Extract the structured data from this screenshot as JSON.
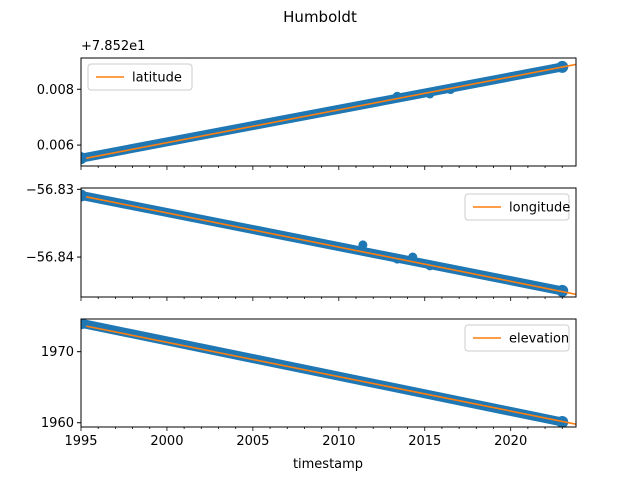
{
  "chart_data": {
    "type": "scatter",
    "title": "Humboldt",
    "shared_x": {
      "label": "timestamp",
      "range": [
        1995,
        2023.8
      ],
      "ticks": [
        1995,
        2000,
        2005,
        2010,
        2015,
        2020
      ],
      "tick_labels": [
        "1995",
        "2000",
        "2005",
        "2010",
        "2015",
        "2020"
      ]
    },
    "panels": [
      {
        "id": "latitude",
        "offset_label": "+7.852e1",
        "ylim": [
          0.00525,
          0.00912
        ],
        "yticks": [
          0.006,
          0.008
        ],
        "ytick_labels": [
          "0.006",
          "0.008"
        ],
        "legend": "latitude",
        "legend_position": "upper left",
        "fit": {
          "x": [
            1995.3,
            2023.8
          ],
          "y": [
            0.00553,
            0.00889
          ]
        },
        "observations": {
          "x": [
            1995.0,
            2023.0
          ],
          "y": [
            0.00553,
            0.0088
          ]
        },
        "outliers": [
          {
            "x": 2013.4,
            "y": 0.00775
          },
          {
            "x": 2015.3,
            "y": 0.00783
          },
          {
            "x": 2016.5,
            "y": 0.00799
          }
        ]
      },
      {
        "id": "longitude",
        "ylim": [
          -56.8459,
          -56.8298
        ],
        "yticks": [
          -56.83,
          -56.84
        ],
        "ytick_labels": [
          "−56.83",
          "−56.84"
        ],
        "legend": "longitude",
        "legend_position": "upper right",
        "fit": {
          "x": [
            1995.3,
            2023.8
          ],
          "y": [
            -56.8311,
            -56.8455
          ]
        },
        "observations": {
          "x": [
            1995.0,
            2023.0
          ],
          "y": [
            -56.8309,
            -56.845
          ]
        },
        "outliers": [
          {
            "x": 2011.4,
            "y": -56.8382
          },
          {
            "x": 2013.4,
            "y": -56.8403
          },
          {
            "x": 2014.3,
            "y": -56.84
          },
          {
            "x": 2015.3,
            "y": -56.8413
          }
        ]
      },
      {
        "id": "elevation",
        "ylim": [
          1959.4,
          1974.6
        ],
        "yticks": [
          1960,
          1970
        ],
        "ytick_labels": [
          "1960",
          "1970"
        ],
        "legend": "elevation",
        "legend_position": "upper right",
        "fit": {
          "x": [
            1995.3,
            2023.8
          ],
          "y": [
            1973.6,
            1959.8
          ]
        },
        "observations": {
          "x": [
            1995.0,
            2023.0
          ],
          "y": [
            1974.0,
            1960.1
          ]
        },
        "outliers": []
      }
    ],
    "colors": {
      "points": "#1f77b4",
      "fit": "#ff7f0e",
      "axes": "#000000"
    },
    "grid": false
  }
}
